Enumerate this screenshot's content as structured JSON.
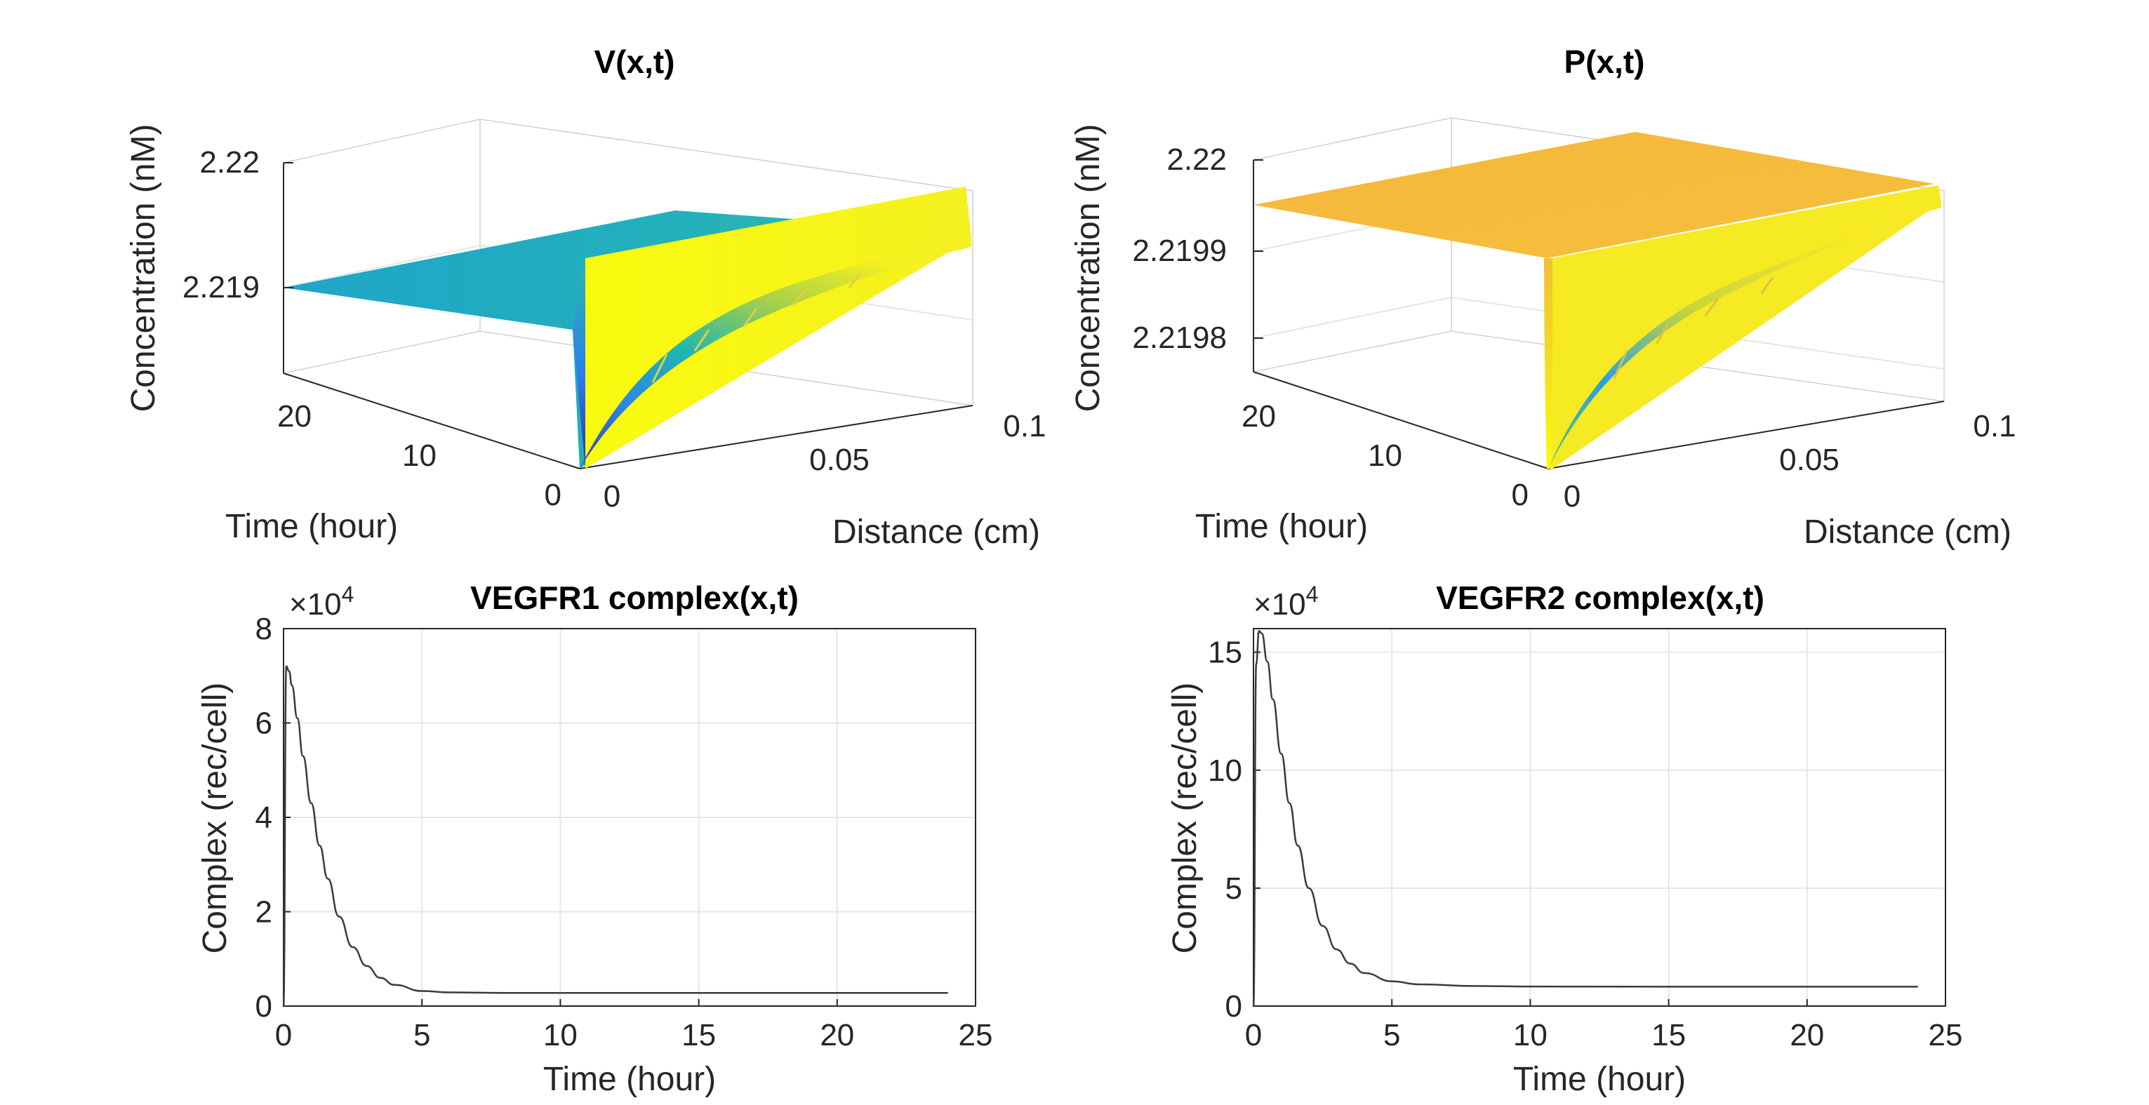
{
  "chart_data": [
    {
      "type": "surface",
      "title": "V(x,t)",
      "xlabel": "Distance (cm)",
      "ylabel": "Time (hour)",
      "zlabel": "Concentration (nM)",
      "xticks": [
        "0",
        "0.05",
        "0.1"
      ],
      "yticks": [
        "0",
        "10",
        "20"
      ],
      "zticks": [
        "2.219",
        "2.22"
      ],
      "xlim": [
        0,
        0.1
      ],
      "ylim": [
        0,
        24
      ],
      "zlim": [
        2.2183,
        2.22
      ],
      "plateau_value": 2.219,
      "edge_max": 2.2197,
      "trough_min": 2.2183,
      "colormap": "parula"
    },
    {
      "type": "surface",
      "title": "P(x,t)",
      "xlabel": "Distance (cm)",
      "ylabel": "Time (hour)",
      "zlabel": "Concentration (nM)",
      "xticks": [
        "0",
        "0.05",
        "0.1"
      ],
      "yticks": [
        "0",
        "10",
        "20"
      ],
      "zticks": [
        "2.2198",
        "2.2199",
        "2.22"
      ],
      "xlim": [
        0,
        0.1
      ],
      "ylim": [
        0,
        24
      ],
      "zlim": [
        2.21974,
        2.22
      ],
      "plateau_value": 2.21995,
      "edge_max": 2.21998,
      "trough_min": 2.21974,
      "colormap": "parula"
    },
    {
      "type": "line",
      "title": "VEGFR1 complex(x,t)",
      "xlabel": "Time (hour)",
      "ylabel": "Complex (rec/cell)",
      "exponent_label": "×10",
      "exponent": "4",
      "xlim": [
        0,
        25
      ],
      "ylim": [
        0,
        8
      ],
      "xticks": [
        "0",
        "5",
        "10",
        "15",
        "20",
        "25"
      ],
      "yticks": [
        "0",
        "2",
        "4",
        "6",
        "8"
      ],
      "grid": true,
      "series": [
        {
          "color": "#3a3a3a",
          "x": [
            0,
            0.1,
            0.2,
            0.3,
            0.5,
            0.7,
            1.0,
            1.3,
            1.6,
            2.0,
            2.5,
            3.0,
            3.5,
            4.0,
            5.0,
            6.0,
            8.0,
            10.0,
            15.0,
            20.0,
            24.0
          ],
          "y": [
            0,
            7.2,
            7.1,
            6.8,
            6.1,
            5.3,
            4.3,
            3.4,
            2.7,
            1.9,
            1.25,
            0.85,
            0.6,
            0.45,
            0.32,
            0.29,
            0.28,
            0.28,
            0.28,
            0.28,
            0.28
          ]
        }
      ]
    },
    {
      "type": "line",
      "title": "VEGFR2 complex(x,t)",
      "xlabel": "Time (hour)",
      "ylabel": "Complex (rec/cell)",
      "exponent_label": "×10",
      "exponent": "4",
      "xlim": [
        0,
        25
      ],
      "ylim": [
        0,
        16
      ],
      "xticks": [
        "0",
        "5",
        "10",
        "15",
        "20",
        "25"
      ],
      "yticks": [
        "0",
        "5",
        "10",
        "15"
      ],
      "grid": true,
      "series": [
        {
          "color": "#3a3a3a",
          "x": [
            0,
            0.1,
            0.2,
            0.3,
            0.5,
            0.7,
            1.0,
            1.3,
            1.6,
            2.0,
            2.5,
            3.0,
            3.5,
            4.0,
            5.0,
            6.0,
            8.0,
            10.0,
            15.0,
            20.0,
            24.0
          ],
          "y": [
            0,
            14.5,
            15.9,
            15.8,
            14.6,
            13.0,
            10.7,
            8.6,
            6.8,
            5.0,
            3.4,
            2.4,
            1.8,
            1.4,
            1.05,
            0.92,
            0.85,
            0.83,
            0.82,
            0.82,
            0.82
          ]
        }
      ]
    }
  ]
}
